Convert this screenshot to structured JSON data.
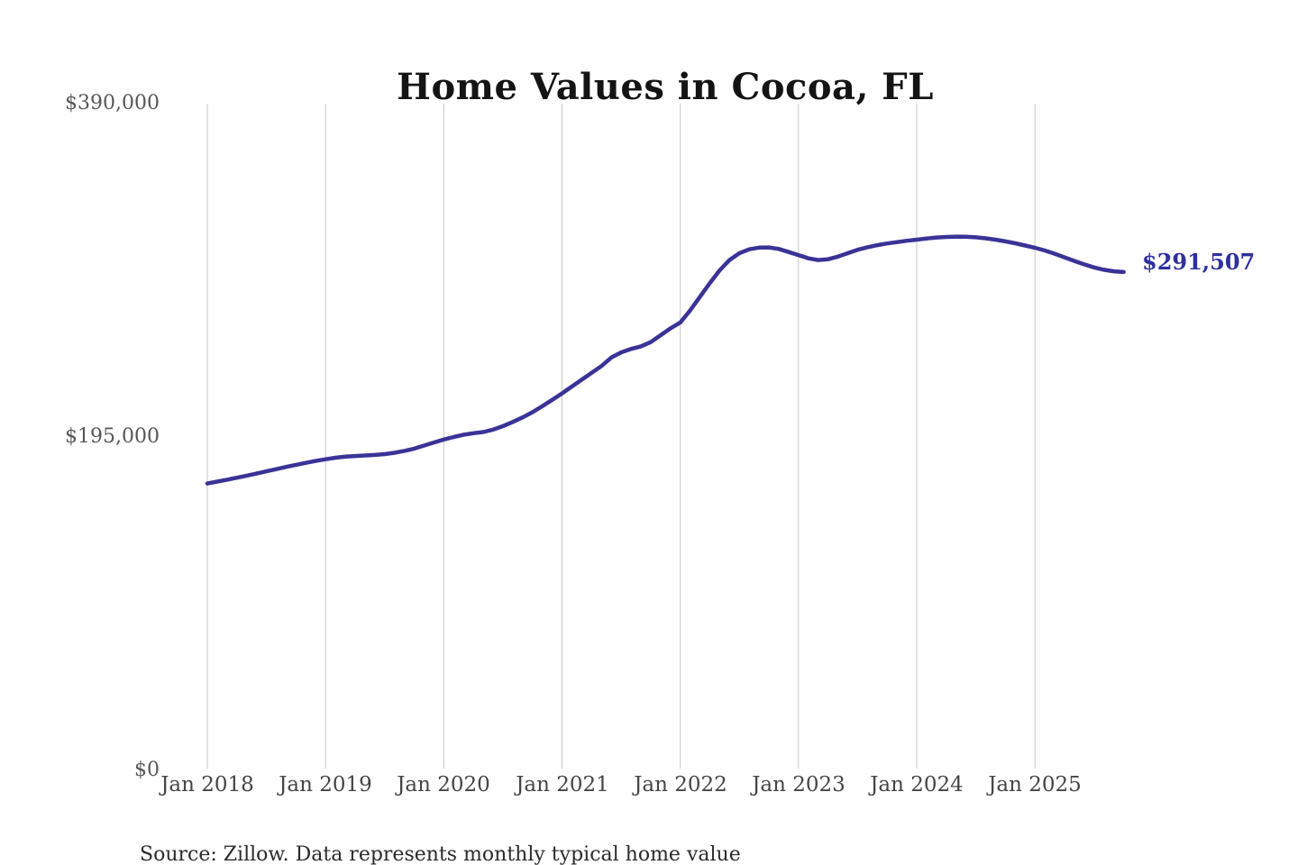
{
  "title": "Home Values in Cocoa, FL",
  "annotation": {
    "end_label": "$291,507"
  },
  "source_note": "Source: Zillow. Data represents monthly typical home value",
  "style": {
    "background": "#ffffff",
    "line_color": "#3a3397",
    "end_label_color": "#2f2f9d",
    "grid_color": "#c6c6c6",
    "y_tick_color": "#575757",
    "x_tick_color": "#454545",
    "title_color": "#141414",
    "source_color": "#2b2b2b"
  },
  "axes": {
    "y_ticks": [
      {
        "label": "$390,000",
        "value": 390000
      },
      {
        "label": "$195,000",
        "value": 195000
      },
      {
        "label": "$0",
        "value": 0
      }
    ],
    "x_ticks": [
      {
        "label": "Jan 2018",
        "month_index": 0
      },
      {
        "label": "Jan 2019",
        "month_index": 12
      },
      {
        "label": "Jan 2020",
        "month_index": 24
      },
      {
        "label": "Jan 2021",
        "month_index": 36
      },
      {
        "label": "Jan 2022",
        "month_index": 48
      },
      {
        "label": "Jan 2023",
        "month_index": 60
      },
      {
        "label": "Jan 2024",
        "month_index": 72
      },
      {
        "label": "Jan 2025",
        "month_index": 84
      }
    ]
  },
  "chart_data": {
    "type": "line",
    "title": "Home Values in Cocoa, FL",
    "series_name": "Monthly typical home value",
    "values_unit": "USD",
    "x_start": "2018-01",
    "x_end": "2025-10",
    "x_interval": "monthly",
    "ylim": [
      0,
      390000
    ],
    "y_tick_values": [
      0,
      195000,
      390000
    ],
    "x_tick_labels": [
      "Jan 2018",
      "Jan 2019",
      "Jan 2020",
      "Jan 2021",
      "Jan 2022",
      "Jan 2023",
      "Jan 2024",
      "Jan 2025"
    ],
    "grid": "vertical-only",
    "legend": "none",
    "final_value": 291507,
    "final_value_label": "$291,507",
    "values": [
      167800,
      168900,
      170000,
      171200,
      172400,
      173600,
      174900,
      176200,
      177500,
      178700,
      179900,
      181000,
      182000,
      182900,
      183500,
      183900,
      184200,
      184500,
      185000,
      185800,
      186900,
      188200,
      190000,
      191800,
      193500,
      195000,
      196300,
      197200,
      197900,
      199300,
      201300,
      203800,
      206500,
      209500,
      213000,
      216700,
      220500,
      224500,
      228500,
      232500,
      236500,
      241500,
      244500,
      246500,
      248000,
      250500,
      254500,
      258500,
      262000,
      269000,
      277000,
      285000,
      292500,
      298500,
      302500,
      304800,
      305800,
      305900,
      305000,
      303200,
      301400,
      299500,
      298500,
      299000,
      300500,
      302500,
      304500,
      306000,
      307200,
      308200,
      309000,
      309800,
      310400,
      311100,
      311700,
      312000,
      312200,
      312100,
      311800,
      311200,
      310400,
      309400,
      308300,
      307000,
      305700,
      304100,
      302200,
      300100,
      298000,
      296000,
      294200,
      292800,
      291900,
      291507
    ]
  }
}
